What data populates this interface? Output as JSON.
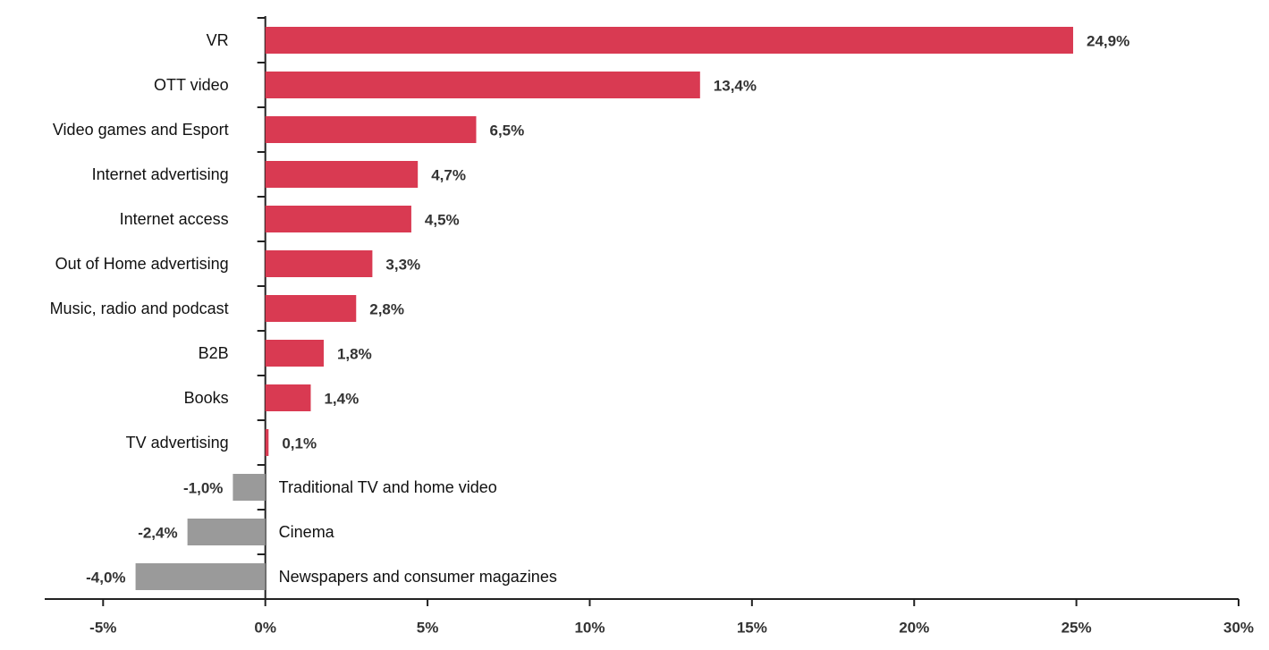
{
  "chart_data": {
    "type": "hbar",
    "categories": [
      "VR",
      "OTT video",
      "Video games and Esport",
      "Internet advertising",
      "Internet access",
      "Out of Home advertising",
      "Music, radio and podcast",
      "B2B",
      "Books",
      "TV advertising",
      "Traditional TV and home video",
      "Cinema",
      "Newspapers and consumer magazines"
    ],
    "values": [
      24.9,
      13.4,
      6.5,
      4.7,
      4.5,
      3.3,
      2.8,
      1.8,
      1.4,
      0.1,
      -1.0,
      -2.4,
      -4.0
    ],
    "value_labels": [
      "24,9%",
      "13,4%",
      "6,5%",
      "4,7%",
      "4,5%",
      "3,3%",
      "2,8%",
      "1,8%",
      "1,4%",
      "0,1%",
      "-1,0%",
      "-2,4%",
      "-4,0%"
    ],
    "color": "#d93a52",
    "negative_color": "#9a9a9a",
    "xlim": [
      -6.8,
      30
    ],
    "xticks": [
      {
        "value": -5,
        "label": "-5%"
      },
      {
        "value": 0,
        "label": "0%"
      },
      {
        "value": 5,
        "label": "5%"
      },
      {
        "value": 10,
        "label": "10%"
      },
      {
        "value": 15,
        "label": "15%"
      },
      {
        "value": 20,
        "label": "20%"
      },
      {
        "value": 25,
        "label": "25%"
      },
      {
        "value": 30,
        "label": "30%"
      }
    ],
    "grid": false
  }
}
